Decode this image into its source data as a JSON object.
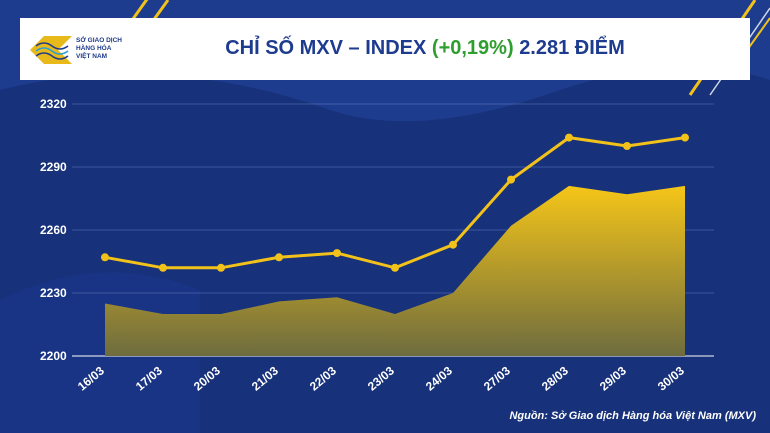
{
  "header": {
    "logo_text": [
      "SỞ GIAO DỊCH",
      "HÀNG HÓA",
      "VIỆT NAM"
    ],
    "title_main": "CHỈ SỐ MXV – INDEX",
    "title_change": "(+0,19%)",
    "title_value": "2.281 ĐIỂM"
  },
  "source": "Nguồn: Sở Giao dịch Hàng hóa Việt Nam (MXV)",
  "colors": {
    "background": "#17317a",
    "line": "#f2c21a",
    "area_top": "#f5c518",
    "area_bottom": "#6e6c3f",
    "change_green": "#2e9e2e",
    "accent_stripe": "#f2c21a"
  },
  "chart_data": {
    "type": "line",
    "categories": [
      "16/03",
      "17/03",
      "20/03",
      "21/03",
      "22/03",
      "23/03",
      "24/03",
      "27/03",
      "28/03",
      "29/03",
      "30/03"
    ],
    "series": [
      {
        "values": [
          2247,
          2242,
          2242,
          2247,
          2249,
          2242,
          2253,
          2284,
          2304,
          2300,
          2304
        ],
        "style": "line-markers"
      },
      {
        "values": [
          2225,
          2220,
          2220,
          2226,
          2228,
          2220,
          2230,
          2262,
          2281,
          2277,
          2281
        ],
        "style": "area"
      }
    ],
    "yticks": [
      2200,
      2230,
      2260,
      2290,
      2320
    ],
    "ylim": [
      2200,
      2320
    ],
    "grid": true
  }
}
